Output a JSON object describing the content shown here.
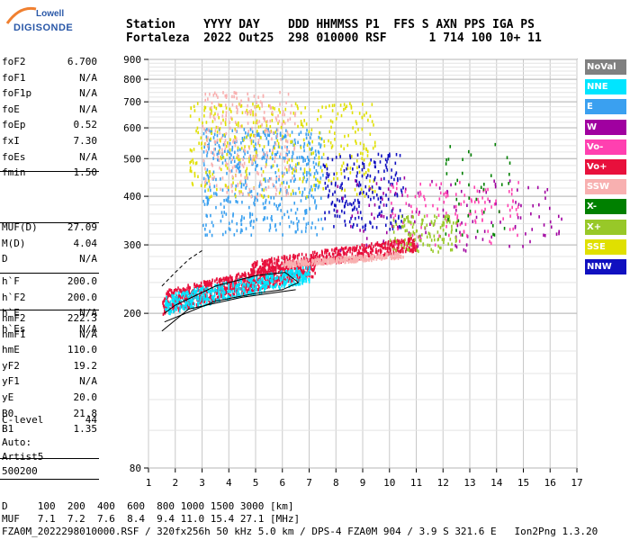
{
  "logo": {
    "brand": "Lowell",
    "product": "DIGISONDE"
  },
  "header": {
    "line1": "Station    YYYY DAY    DDD HHMMSS P1  FFS S AXN PPS IGA PS",
    "line2": "Fortaleza  2022 Out25  298 010000 RSF      1 714 100 10+ 11"
  },
  "params_group1": [
    {
      "k": "foF2",
      "v": "6.700"
    },
    {
      "k": "foF1",
      "v": "N/A"
    },
    {
      "k": "foF1p",
      "v": "N/A"
    },
    {
      "k": "foE",
      "v": "N/A"
    },
    {
      "k": "foEp",
      "v": "0.52"
    },
    {
      "k": "fxI",
      "v": "7.30"
    },
    {
      "k": "foEs",
      "v": "N/A"
    },
    {
      "k": "fmin",
      "v": "1.50"
    }
  ],
  "params_group2": [
    {
      "k": "MUF(D)",
      "v": "27.09"
    },
    {
      "k": "M(D)",
      "v": "4.04"
    },
    {
      "k": "D",
      "v": "N/A"
    }
  ],
  "params_group3": [
    {
      "k": "h`F",
      "v": "200.0"
    },
    {
      "k": "h`F2",
      "v": "200.0"
    },
    {
      "k": "h`E",
      "v": "N/A"
    },
    {
      "k": "h`Es",
      "v": "N/A"
    }
  ],
  "params_group4": [
    {
      "k": "hmF2",
      "v": "222.3"
    },
    {
      "k": "hmF1",
      "v": "N/A"
    },
    {
      "k": "hmE",
      "v": "110.0"
    },
    {
      "k": "yF2",
      "v": "19.2"
    },
    {
      "k": "yF1",
      "v": "N/A"
    },
    {
      "k": "yE",
      "v": "20.0"
    },
    {
      "k": "B0",
      "v": "21.8"
    },
    {
      "k": "B1",
      "v": "1.35"
    }
  ],
  "c_level": {
    "k": "C-level",
    "v": "44"
  },
  "auto": {
    "line1": "Auto:",
    "line2": "Artist5",
    "line3": "500200"
  },
  "legend": [
    {
      "label": "NoVal",
      "color": "#808080"
    },
    {
      "label": "NNE",
      "color": "#00e5ff"
    },
    {
      "label": "E",
      "color": "#3aa0f0"
    },
    {
      "label": "W",
      "color": "#a000a0"
    },
    {
      "label": "Vo-",
      "color": "#ff40b0"
    },
    {
      "label": "Vo+",
      "color": "#e8103c"
    },
    {
      "label": "SSW",
      "color": "#f8b0b0"
    },
    {
      "label": "X-",
      "color": "#008000"
    },
    {
      "label": "X+",
      "color": "#98c828"
    },
    {
      "label": "SSE",
      "color": "#e0e000"
    },
    {
      "label": "NNW",
      "color": "#1010c0"
    }
  ],
  "bottom": {
    "line1": "D     100  200  400  600  800 1000 1500 3000 [km]",
    "line2": "MUF   7.1  7.2  7.6  8.4  9.4 11.0 15.4 27.1 [MHz]",
    "line3": "FZA0M_2022298010000.RSF / 320fx256h 50 kHz 5.0 km / DPS-4 FZA0M 904 / 3.9 S 321.6 E   Ion2Png 1.3.20"
  },
  "chart_data": {
    "type": "scatter",
    "title": "",
    "xlabel": "",
    "ylabel": "",
    "xlim": [
      1,
      17
    ],
    "ylim": [
      80,
      900
    ],
    "y_scale": "log",
    "x_ticks": [
      1,
      2,
      3,
      4,
      5,
      6,
      7,
      8,
      9,
      10,
      11,
      12,
      13,
      14,
      15,
      16,
      17
    ],
    "y_ticks": [
      80,
      200,
      300,
      400,
      500,
      600,
      700,
      800,
      900
    ],
    "grid": true,
    "clusters": [
      {
        "name": "F2 O-trace",
        "color": "#e8103c",
        "x": [
          1.5,
          7.2
        ],
        "y": [
          200,
          285
        ]
      },
      {
        "name": "F2 O-trace upper",
        "color": "#e8103c",
        "x": [
          4.8,
          11.0
        ],
        "y": [
          250,
          320
        ]
      },
      {
        "name": "SSW low",
        "color": "#f8b0b0",
        "x": [
          6.0,
          10.5
        ],
        "y": [
          265,
          290
        ]
      },
      {
        "name": "NNE spread",
        "color": "#00e5ff",
        "x": [
          1.6,
          7.0
        ],
        "y": [
          200,
          270
        ]
      },
      {
        "name": "E spread",
        "color": "#3aa0f0",
        "x": [
          3.0,
          7.5
        ],
        "y": [
          320,
          600
        ]
      },
      {
        "name": "SSE spread",
        "color": "#e0e000",
        "x": [
          2.5,
          9.5
        ],
        "y": [
          400,
          700
        ]
      },
      {
        "name": "SSW upper",
        "color": "#f8b0b0",
        "x": [
          3.0,
          6.5
        ],
        "y": [
          400,
          750
        ]
      },
      {
        "name": "NNW",
        "color": "#1010c0",
        "x": [
          7.5,
          10.5
        ],
        "y": [
          330,
          520
        ]
      },
      {
        "name": "W",
        "color": "#a000a0",
        "x": [
          8.0,
          16.5
        ],
        "y": [
          290,
          450
        ]
      },
      {
        "name": "Vo- high",
        "color": "#ff40b0",
        "x": [
          10.0,
          14.8
        ],
        "y": [
          300,
          440
        ]
      },
      {
        "name": "X+",
        "color": "#98c828",
        "x": [
          10.0,
          12.5
        ],
        "y": [
          290,
          360
        ]
      },
      {
        "name": "X-",
        "color": "#008000",
        "x": [
          12.0,
          14.5
        ],
        "y": [
          320,
          560
        ]
      }
    ],
    "model_profile": {
      "color": "#000000",
      "points": [
        [
          1.6,
          190
        ],
        [
          3.5,
          215
        ],
        [
          5.0,
          225
        ],
        [
          6.0,
          230
        ],
        [
          6.6,
          240
        ],
        [
          6.1,
          255
        ],
        [
          5.0,
          250
        ],
        [
          3.5,
          235
        ],
        [
          2.0,
          210
        ],
        [
          1.6,
          200
        ]
      ]
    },
    "dashed_profile": {
      "color": "#000000",
      "points": [
        [
          1.5,
          235
        ],
        [
          2.0,
          255
        ],
        [
          2.5,
          275
        ],
        [
          3.0,
          290
        ]
      ]
    },
    "lower_line": {
      "color": "#000000",
      "points": [
        [
          1.5,
          180
        ],
        [
          2.5,
          205
        ],
        [
          4.5,
          220
        ],
        [
          6.5,
          230
        ]
      ]
    }
  }
}
